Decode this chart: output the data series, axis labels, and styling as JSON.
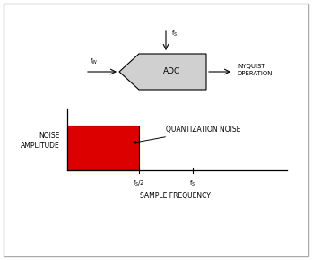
{
  "fig_width": 3.48,
  "fig_height": 2.9,
  "dpi": 100,
  "adc_label": "ADC",
  "fs_label": "f$_S$",
  "fin_label": "f$_{IN}$",
  "nyquist_label": "NYQUIST\nOPERATION",
  "rect_color": "#dd0000",
  "noise_amp_label": "NOISE\nAMPLITUDE",
  "quant_noise_label": "QUANTIZATION NOISE",
  "sample_freq_label": "SAMPLE FREQUENCY",
  "tick_label_fs2": "f$_S$/2",
  "tick_label_fs": "f$_S$",
  "font_size_adc": 6.5,
  "font_size_labels": 5.0,
  "font_size_axis": 5.5,
  "font_size_nyquist": 5.0,
  "font_size_tick": 5.0,
  "font_size_sample_freq": 5.5
}
